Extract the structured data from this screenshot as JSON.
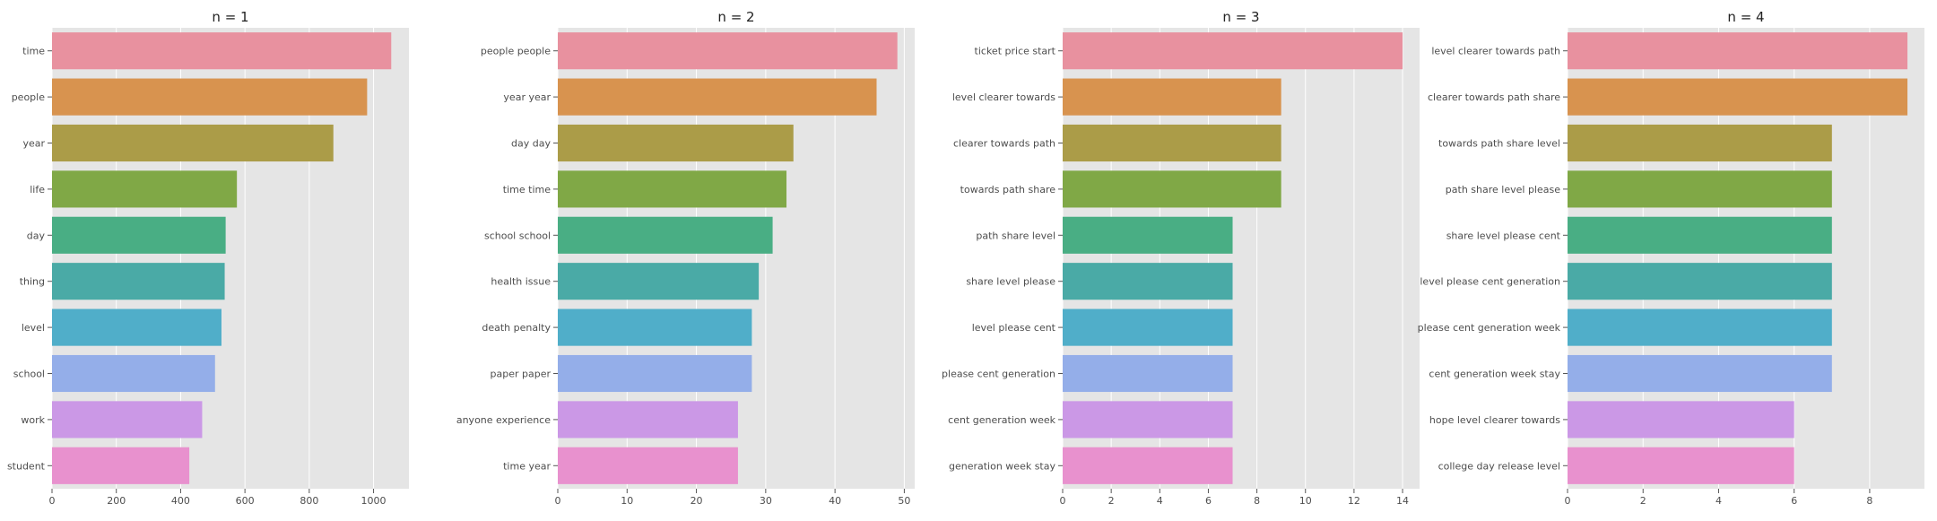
{
  "figure": {
    "colors": [
      "#e8919f",
      "#d8934f",
      "#ab9c48",
      "#80a846",
      "#49ae84",
      "#4aaaa6",
      "#50aec9",
      "#94aee9",
      "#cb98e6",
      "#e891ce"
    ],
    "background": "#e5e5e5",
    "grid": true
  },
  "chart_data": [
    {
      "type": "bar",
      "orientation": "horizontal",
      "title": "n = 1",
      "categories": [
        "time",
        "people",
        "year",
        "life",
        "day",
        "thing",
        "level",
        "school",
        "work",
        "student"
      ],
      "values": [
        1055,
        980,
        875,
        575,
        540,
        537,
        527,
        507,
        467,
        427
      ],
      "xlim": [
        0,
        1110
      ],
      "xticks": [
        0,
        200,
        400,
        600,
        800,
        1000
      ]
    },
    {
      "type": "bar",
      "orientation": "horizontal",
      "title": "n = 2",
      "categories": [
        "people people",
        "year year",
        "day day",
        "time time",
        "school school",
        "health issue",
        "death penalty",
        "paper paper",
        "anyone experience",
        "time year"
      ],
      "values": [
        49,
        46,
        34,
        33,
        31,
        29,
        28,
        28,
        26,
        26
      ],
      "xlim": [
        0,
        51.5
      ],
      "xticks": [
        0,
        10,
        20,
        30,
        40,
        50
      ]
    },
    {
      "type": "bar",
      "orientation": "horizontal",
      "title": "n = 3",
      "categories": [
        "ticket price start",
        "level clearer towards",
        "clearer towards path",
        "towards path share",
        "path share level",
        "share level please",
        "level please cent",
        "please cent generation",
        "cent generation week",
        "generation week stay"
      ],
      "values": [
        14,
        9,
        9,
        9,
        7,
        7,
        7,
        7,
        7,
        7
      ],
      "xlim": [
        0,
        14.7
      ],
      "xticks": [
        0,
        2,
        4,
        6,
        8,
        10,
        12,
        14
      ]
    },
    {
      "type": "bar",
      "orientation": "horizontal",
      "title": "n = 4",
      "categories": [
        "level clearer towards path",
        "clearer towards path share",
        "towards path share level",
        "path share level please",
        "share level please cent",
        "level please cent generation",
        "please cent generation week",
        "cent generation week stay",
        "hope level clearer towards",
        "college day release level"
      ],
      "values": [
        9,
        9,
        7,
        7,
        7,
        7,
        7,
        7,
        6,
        6
      ],
      "xlim": [
        0,
        9.45
      ],
      "xticks": [
        0,
        2,
        4,
        6,
        8
      ]
    }
  ]
}
